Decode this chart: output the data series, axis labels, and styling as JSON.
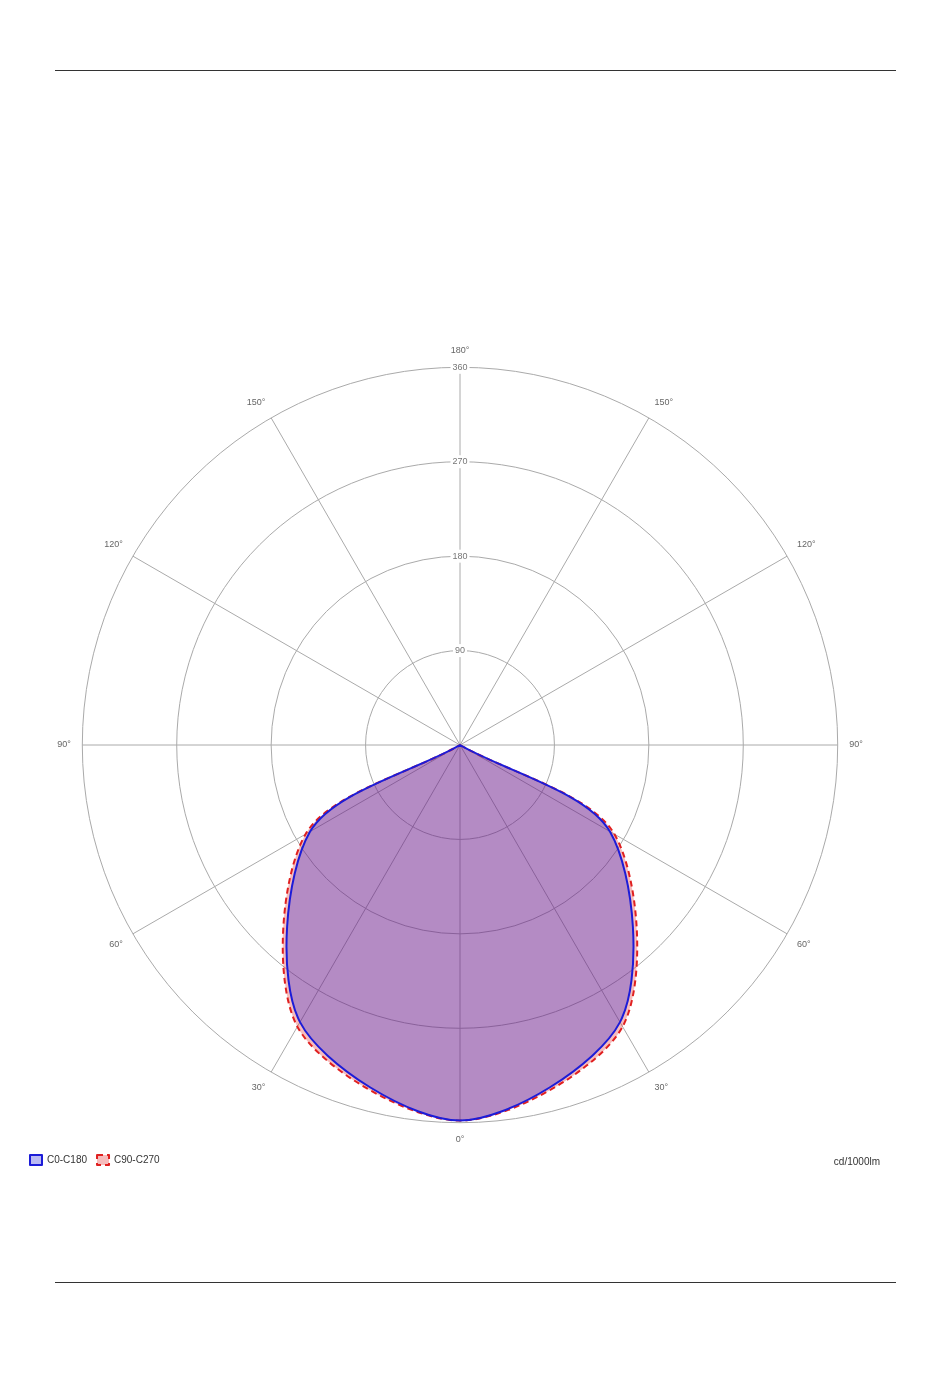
{
  "chart_data": {
    "type": "radar",
    "categories": [
      "180°",
      "150°",
      "120°",
      "90°",
      "60°",
      "30°",
      "0°",
      "30°",
      "60°",
      "90°",
      "120°",
      "150°"
    ],
    "series": [
      {
        "name": "C0-C180",
        "color": "#1c1cd8",
        "line_style": "solid",
        "values": [
          0,
          0,
          0,
          0,
          165,
          305,
          358,
          305,
          165,
          0,
          0,
          0
        ]
      },
      {
        "name": "C90-C270",
        "color": "#e02020",
        "line_style": "dashed",
        "values": [
          0,
          0,
          0,
          0,
          170,
          310,
          358,
          310,
          170,
          0,
          0,
          0
        ]
      }
    ],
    "ylim": [
      0,
      360
    ],
    "yticks": [
      90,
      180,
      270,
      360
    ],
    "grid": true,
    "marker": "none",
    "legend": "bottom left",
    "annotations": [
      "cd/1000lm"
    ]
  }
}
